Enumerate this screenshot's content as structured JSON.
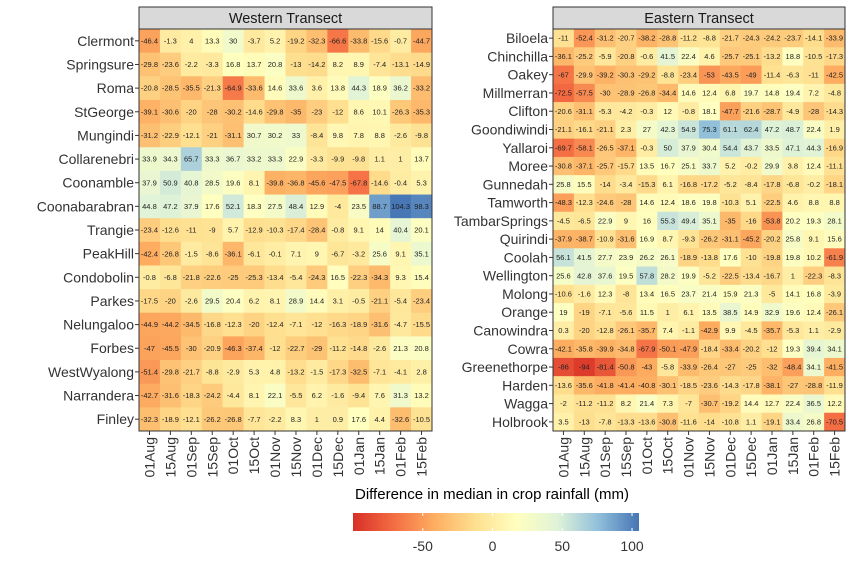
{
  "chart_data": {
    "type": "heatmap",
    "xlabel": "Difference in median in crop rainfall (mm)",
    "colorbar": {
      "ticks": [
        -50,
        0,
        50,
        100
      ],
      "range": [
        -100,
        105
      ],
      "colors": [
        "#d73027",
        "#f46d43",
        "#fdae61",
        "#fee090",
        "#ffffbf",
        "#e0f3d8",
        "#91bfdb",
        "#4575b4"
      ]
    },
    "panels": [
      {
        "title": "Western Transect",
        "columns": [
          "01Aug",
          "15Aug",
          "01Sep",
          "15Sep",
          "01Oct",
          "15Oct",
          "01Nov",
          "15Nov",
          "01Dec",
          "15Dec",
          "01Jan",
          "15Jan",
          "01Feb",
          "15Feb"
        ],
        "rows": [
          "Clermont",
          "Springsure",
          "Roma",
          "StGeorge",
          "Mungindi",
          "Collarenebri",
          "Coonamble",
          "Coonabarabran",
          "Trangie",
          "PeakHill",
          "Condobolin",
          "Parkes",
          "Nelungaloo",
          "Forbes",
          "WestWyalong",
          "Narrandera",
          "Finley"
        ],
        "values": [
          [
            -46.4,
            -1.3,
            4,
            13.3,
            30,
            -3.7,
            5.2,
            -19.2,
            -32.3,
            -66.6,
            -33.8,
            -15.6,
            -0.7,
            -44.7
          ],
          [
            -29.8,
            -23.6,
            -2.2,
            -3.3,
            16.8,
            13.7,
            20.8,
            -13,
            -14.2,
            8.2,
            8.9,
            -7.4,
            -13.1,
            -14.9
          ],
          [
            -20.8,
            -28.5,
            -35.5,
            -21.3,
            -64.9,
            -33.6,
            14.6,
            33.6,
            3.6,
            13.8,
            44.3,
            18.9,
            36.2,
            -33.2
          ],
          [
            -39.1,
            -30.6,
            -20,
            -28,
            -30.2,
            -14.6,
            -29.8,
            -35,
            -23,
            -12,
            8.6,
            10.1,
            -26.3,
            -35.3
          ],
          [
            -31.2,
            -22.9,
            -12.1,
            -21,
            -31.1,
            30.7,
            30.2,
            33,
            -8.4,
            9.8,
            7.8,
            8.8,
            -2.6,
            -9.8
          ],
          [
            33.9,
            34.3,
            65.7,
            33.3,
            36.7,
            33.2,
            33.3,
            22.9,
            -3.3,
            -9.9,
            -9.8,
            1.1,
            1,
            13.7
          ],
          [
            37.9,
            50.9,
            40.8,
            28.5,
            19.6,
            8.1,
            -39.8,
            -36.8,
            -45.6,
            -47.5,
            -67.8,
            -14.6,
            -0.4,
            5.3
          ],
          [
            44.8,
            47.2,
            37.9,
            17.6,
            52.1,
            18.3,
            27.5,
            48.4,
            12.9,
            -4,
            23.5,
            88.7,
            104.3,
            98.3
          ],
          [
            -23.4,
            -12.6,
            -11,
            -9,
            5.7,
            -12.9,
            -10.3,
            -17.4,
            -28.4,
            -0.8,
            9.1,
            14,
            40.4,
            20.1
          ],
          [
            -42.4,
            -26.8,
            -1.5,
            -8.6,
            -36.1,
            -6.1,
            -0.1,
            7.1,
            9,
            -6.7,
            -3.2,
            25.6,
            9.1,
            35.1
          ],
          [
            -0.8,
            -6.8,
            -21.8,
            -22.6,
            -25,
            -25.3,
            -13.4,
            -5.4,
            -24.3,
            16.5,
            -22.3,
            -34.3,
            9.3,
            15.4
          ],
          [
            -17.5,
            -20,
            -2.6,
            29.5,
            20.4,
            6.2,
            8.1,
            28.9,
            14.4,
            3.1,
            -0.5,
            -21.1,
            -5.4,
            -23.4
          ],
          [
            -44.9,
            -44.2,
            -34.5,
            -16.8,
            -12.3,
            -20,
            -12.4,
            -7.1,
            -12,
            -16.3,
            -18.9,
            -31.6,
            -4.7,
            -15.5
          ],
          [
            -47,
            -45.5,
            -30,
            -20.9,
            -46.3,
            -37.4,
            -12,
            -22.7,
            -29,
            -11.2,
            -14.8,
            -2.6,
            21.3,
            20.8
          ],
          [
            -51.4,
            -29.8,
            -21.7,
            -8.8,
            -2.9,
            5.3,
            4.8,
            -13.2,
            -1.5,
            -17.3,
            -32.5,
            -7.1,
            -4.1,
            2.8
          ],
          [
            -42.7,
            -31.6,
            -18.3,
            -24.2,
            -4.4,
            8.1,
            22.1,
            -5.5,
            6.2,
            -1.6,
            -9.4,
            7.6,
            31.3,
            13.2
          ],
          [
            -32.3,
            -18.9,
            -12.1,
            -26.2,
            -26.8,
            -7.7,
            -2.2,
            8.3,
            1,
            0.9,
            17.6,
            4.4,
            -32.6,
            -10.5
          ]
        ]
      },
      {
        "title": "Eastern Transect",
        "columns": [
          "01Aug",
          "15Aug",
          "01Sep",
          "15Sep",
          "01Oct",
          "15Oct",
          "01Nov",
          "15Nov",
          "01Dec",
          "15Dec",
          "01Jan",
          "15Jan",
          "01Feb",
          "15Feb"
        ],
        "rows": [
          "Biloela",
          "Chinchilla",
          "Oakey",
          "Millmerran",
          "Clifton",
          "Goondiwindi",
          "Yallaroi",
          "Moree",
          "Gunnedah",
          "Tamworth",
          "TambarSprings",
          "Quirindi",
          "Coolah",
          "Wellington",
          "Molong",
          "Orange",
          "Canowindra",
          "Cowra",
          "Greenethorpe",
          "Harden",
          "Wagga",
          "Holbrook"
        ],
        "values": [
          [
            -11,
            -52.4,
            -31.2,
            -20.7,
            -38.2,
            -28.8,
            -11.2,
            -8.8,
            -21.7,
            -24.3,
            -24.2,
            -23.7,
            -14.1,
            -33.9
          ],
          [
            -36.1,
            -25.2,
            -5.9,
            -20.8,
            -0.6,
            41.5,
            22.4,
            4.6,
            -25.7,
            -25.1,
            -13.2,
            18.8,
            -10.5,
            -17.3
          ],
          [
            -67,
            -29.9,
            -39.2,
            -30.3,
            -29.2,
            -8.8,
            -23.4,
            -53,
            -43.5,
            -49,
            -11.4,
            -6.3,
            -11,
            -42.5
          ],
          [
            -72.5,
            -57.5,
            -30,
            -28.9,
            -26.8,
            -34.4,
            14.6,
            12.4,
            6.8,
            19.7,
            14.8,
            19.4,
            7.2,
            -4.8
          ],
          [
            -20.6,
            -31.1,
            -5.3,
            -4.2,
            -0.3,
            12,
            -0.8,
            18.1,
            -47.7,
            -21.6,
            -28.7,
            -4.9,
            -28,
            -14.3
          ],
          [
            -21.1,
            -16.1,
            -21.1,
            2.3,
            27,
            42.3,
            54.9,
            75.3,
            61.1,
            62.4,
            47.2,
            48.7,
            22.4,
            1.9
          ],
          [
            -69.7,
            -58.1,
            -26.5,
            -37.1,
            -0.3,
            50,
            37.9,
            30.4,
            54.4,
            43.7,
            33.5,
            47.1,
            44.3,
            -16.9
          ],
          [
            -30.8,
            -37.1,
            -25.7,
            -15.7,
            13.5,
            16.7,
            25.1,
            33.7,
            5.2,
            -0.2,
            29.9,
            3.8,
            12.4,
            -11.1
          ],
          [
            25.8,
            15.5,
            -14,
            -3.4,
            -15.3,
            6.1,
            -16.8,
            -17.2,
            -5.2,
            -8.4,
            -17.8,
            -6.8,
            -0.2,
            -18.1
          ],
          [
            -48.3,
            -12.3,
            -24.6,
            -28,
            14.6,
            12.4,
            18.6,
            19.8,
            -10.3,
            5.1,
            -22.5,
            4.6,
            8.8,
            8.8
          ],
          [
            -4.5,
            -6.5,
            22.9,
            9,
            16,
            55.3,
            49.4,
            35.1,
            -35,
            -16,
            -53.8,
            20.2,
            19.3,
            28.1
          ],
          [
            -37.9,
            -38.7,
            -10.9,
            -31.6,
            16.9,
            8.7,
            -9.3,
            -26.2,
            -31.1,
            -45.2,
            -20.2,
            25.8,
            9.1,
            15.6
          ],
          [
            56.1,
            41.5,
            27.7,
            23.9,
            26.2,
            26.1,
            -18.9,
            -13.8,
            17.6,
            -10,
            -19.8,
            19.8,
            10.2,
            -61.9
          ],
          [
            25.6,
            42.8,
            37.6,
            19.5,
            57.8,
            28.2,
            19.9,
            -5.2,
            -22.5,
            -13.4,
            -16.7,
            1,
            -22.3,
            -8.3
          ],
          [
            -10.6,
            -1.6,
            12.3,
            -8,
            13.4,
            16.5,
            23.7,
            21.4,
            15.9,
            21.3,
            -5,
            14.1,
            16.8,
            -3.9
          ],
          [
            19,
            -19,
            -7.1,
            -5.6,
            11.5,
            1,
            6.1,
            13.5,
            38.5,
            14.9,
            32.9,
            19.6,
            12.4,
            -26.1
          ],
          [
            0.3,
            -20,
            -12.8,
            -26.1,
            -35.7,
            7.4,
            -1.1,
            -42.9,
            9.9,
            -4.5,
            -35.7,
            -5.3,
            1.1,
            -2.9
          ],
          [
            -42.1,
            -35.8,
            -39.9,
            -34.8,
            -67.9,
            -50.1,
            -47.9,
            -18.4,
            -33.4,
            -20.2,
            -12,
            19.3,
            39.4,
            34.1
          ],
          [
            -86,
            -94,
            -81.4,
            -50.8,
            -43,
            -5.8,
            -33.9,
            -26.4,
            -27,
            -25,
            -32,
            -48.4,
            34.1,
            -41.5
          ],
          [
            -13.6,
            -35.6,
            -41.8,
            -41.4,
            -40.8,
            -30.1,
            -18.5,
            -23.6,
            -14.3,
            -17.8,
            -38.1,
            -27,
            -28.8,
            -11.9
          ],
          [
            -2,
            -11.2,
            -11.2,
            8.2,
            21.4,
            7.3,
            -7,
            -30.7,
            -19.2,
            14.4,
            12.7,
            22.4,
            36.5,
            12.2
          ],
          [
            3.5,
            -13,
            -7.8,
            -13.3,
            -13.6,
            -30.8,
            -11.6,
            -14,
            -10.8,
            1.1,
            -19.1,
            33.4,
            26.8,
            -70.5
          ]
        ]
      }
    ]
  }
}
